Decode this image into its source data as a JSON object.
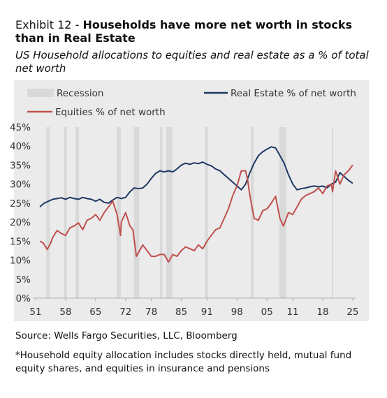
{
  "header": {
    "exhibit": "Exhibit 12 - ",
    "title": "Households have more net worth in stocks than in Real Estate",
    "subtitle": "US Household allocations to equities and real estate as a % of total net worth"
  },
  "footer": {
    "source": "Source: Wells Fargo Securities, LLC, Bloomberg",
    "note": "*Household equity allocation includes stocks directly held, mutual fund equity shares, and equities in insurance and pensions"
  },
  "colors": {
    "real_estate": "#1f3864",
    "equities": "#c0504d",
    "recession": "#d9d9d9",
    "panel": "#ebebeb"
  },
  "chart_data": {
    "type": "line",
    "x_tick_labels": [
      "51",
      "58",
      "65",
      "72",
      "78",
      "85",
      "91",
      "98",
      "05",
      "11",
      "18",
      "25"
    ],
    "x_ticks": [
      1951,
      1958,
      1965,
      1972,
      1978,
      1985,
      1991,
      1998,
      2005,
      2011,
      2018,
      2025
    ],
    "xlim": [
      1951,
      2025.5
    ],
    "y_tick_labels": [
      "0%",
      "5%",
      "10%",
      "15%",
      "20%",
      "25%",
      "30%",
      "35%",
      "40%",
      "45%"
    ],
    "ylim": [
      0,
      45
    ],
    "legend": {
      "placement": "top",
      "recession_label": "Recession",
      "real_estate_label": "Real Estate % of net worth",
      "equities_label": "Equities % of net worth"
    },
    "recessions": [
      [
        1953.5,
        1954.3
      ],
      [
        1957.6,
        1958.3
      ],
      [
        1960.3,
        1961.1
      ],
      [
        1969.9,
        1970.9
      ],
      [
        1973.9,
        1975.2
      ],
      [
        1980.0,
        1980.6
      ],
      [
        1981.5,
        1982.9
      ],
      [
        1990.5,
        1991.2
      ],
      [
        2001.2,
        2001.9
      ],
      [
        2007.9,
        2009.5
      ],
      [
        2020.1,
        2020.4
      ]
    ],
    "series": [
      {
        "name": "Real Estate % of net worth",
        "key": "real_estate",
        "points": [
          [
            1952,
            24
          ],
          [
            1953,
            25
          ],
          [
            1954,
            25.5
          ],
          [
            1955,
            26
          ],
          [
            1956,
            26.2
          ],
          [
            1957,
            26.4
          ],
          [
            1958,
            26
          ],
          [
            1959,
            26.5
          ],
          [
            1960,
            26.2
          ],
          [
            1961,
            26
          ],
          [
            1962,
            26.5
          ],
          [
            1963,
            26.2
          ],
          [
            1964,
            26
          ],
          [
            1965,
            25.5
          ],
          [
            1966,
            26
          ],
          [
            1967,
            25.2
          ],
          [
            1968,
            25
          ],
          [
            1969,
            25.8
          ],
          [
            1970,
            26.5
          ],
          [
            1971,
            26.2
          ],
          [
            1972,
            26.5
          ],
          [
            1973,
            28
          ],
          [
            1974,
            29
          ],
          [
            1975,
            28.8
          ],
          [
            1976,
            29
          ],
          [
            1977,
            30
          ],
          [
            1978,
            31.5
          ],
          [
            1979,
            32.8
          ],
          [
            1980,
            33.5
          ],
          [
            1981,
            33.2
          ],
          [
            1982,
            33.5
          ],
          [
            1983,
            33.2
          ],
          [
            1984,
            34
          ],
          [
            1985,
            35
          ],
          [
            1986,
            35.5
          ],
          [
            1987,
            35.2
          ],
          [
            1988,
            35.6
          ],
          [
            1989,
            35.4
          ],
          [
            1990,
            35.8
          ],
          [
            1991,
            35.2
          ],
          [
            1992,
            34.8
          ],
          [
            1993,
            34
          ],
          [
            1994,
            33.5
          ],
          [
            1995,
            32.5
          ],
          [
            1996,
            31.5
          ],
          [
            1997,
            30.5
          ],
          [
            1998,
            29.5
          ],
          [
            1999,
            28.5
          ],
          [
            2000,
            30
          ],
          [
            2001,
            33
          ],
          [
            2002,
            35.5
          ],
          [
            2003,
            37.5
          ],
          [
            2004,
            38.5
          ],
          [
            2005,
            39.2
          ],
          [
            2006,
            39.8
          ],
          [
            2007,
            39.5
          ],
          [
            2008,
            37.5
          ],
          [
            2009,
            35.5
          ],
          [
            2010,
            32.5
          ],
          [
            2011,
            30
          ],
          [
            2012,
            28.5
          ],
          [
            2013,
            28.8
          ],
          [
            2014,
            29
          ],
          [
            2015,
            29.3
          ],
          [
            2016,
            29.5
          ],
          [
            2017,
            29.3
          ],
          [
            2018,
            29.5
          ],
          [
            2019,
            29
          ],
          [
            2020,
            30
          ],
          [
            2021,
            30.5
          ],
          [
            2022,
            33
          ],
          [
            2023,
            32
          ],
          [
            2024,
            31
          ],
          [
            2025,
            30.2
          ]
        ]
      },
      {
        "name": "Equities % of net worth",
        "key": "equities",
        "points": [
          [
            1952,
            15
          ],
          [
            1952.8,
            14.5
          ],
          [
            1953.7,
            12.8
          ],
          [
            1954.5,
            14.5
          ],
          [
            1955,
            16
          ],
          [
            1956,
            17.8
          ],
          [
            1957,
            17
          ],
          [
            1958,
            16.5
          ],
          [
            1959,
            18.5
          ],
          [
            1960,
            19
          ],
          [
            1961,
            19.8
          ],
          [
            1962,
            18
          ],
          [
            1963,
            20.5
          ],
          [
            1964,
            21
          ],
          [
            1965,
            22
          ],
          [
            1966,
            20.5
          ],
          [
            1967,
            22.5
          ],
          [
            1968,
            24
          ],
          [
            1969,
            25.5
          ],
          [
            1970,
            22
          ],
          [
            1970.8,
            16.5
          ],
          [
            1971,
            20
          ],
          [
            1972,
            22.5
          ],
          [
            1973,
            19
          ],
          [
            1973.7,
            18
          ],
          [
            1974.5,
            11
          ],
          [
            1975.5,
            13
          ],
          [
            1976,
            14
          ],
          [
            1977,
            12.5
          ],
          [
            1978,
            11
          ],
          [
            1979,
            11
          ],
          [
            1980,
            11.5
          ],
          [
            1981,
            11.5
          ],
          [
            1982,
            9.5
          ],
          [
            1983,
            11.5
          ],
          [
            1984,
            11
          ],
          [
            1985,
            12.5
          ],
          [
            1986,
            13.5
          ],
          [
            1987,
            13
          ],
          [
            1988,
            12.5
          ],
          [
            1989,
            14
          ],
          [
            1990,
            13
          ],
          [
            1991,
            15
          ],
          [
            1992,
            16.5
          ],
          [
            1993,
            18
          ],
          [
            1994,
            18.5
          ],
          [
            1995,
            21
          ],
          [
            1996,
            23.5
          ],
          [
            1997,
            27
          ],
          [
            1998,
            29.5
          ],
          [
            1999,
            33.5
          ],
          [
            2000,
            33.5
          ],
          [
            2000.5,
            31
          ],
          [
            2001,
            27
          ],
          [
            2002,
            21
          ],
          [
            2003,
            20.5
          ],
          [
            2004,
            23
          ],
          [
            2005,
            23.5
          ],
          [
            2006,
            25
          ],
          [
            2007,
            26.8
          ],
          [
            2008,
            21
          ],
          [
            2008.8,
            19
          ],
          [
            2009.5,
            21
          ],
          [
            2010,
            22.5
          ],
          [
            2011,
            22
          ],
          [
            2012,
            24
          ],
          [
            2013,
            26
          ],
          [
            2014,
            27
          ],
          [
            2015,
            27.5
          ],
          [
            2016,
            28
          ],
          [
            2017,
            29
          ],
          [
            2018,
            27.5
          ],
          [
            2019,
            29.5
          ],
          [
            2020,
            30
          ],
          [
            2020.3,
            28
          ],
          [
            2021,
            33.5
          ],
          [
            2022,
            30
          ],
          [
            2023,
            32.5
          ],
          [
            2024,
            33.5
          ],
          [
            2025,
            35
          ]
        ]
      }
    ]
  }
}
